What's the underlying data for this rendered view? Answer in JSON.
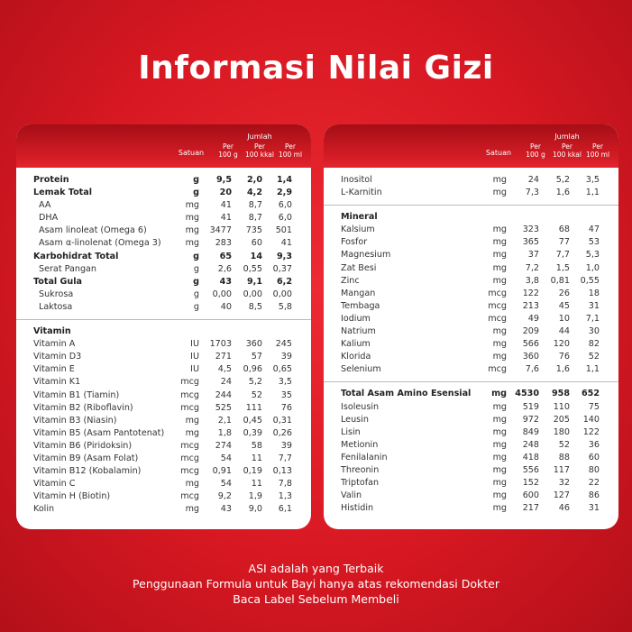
{
  "title": "Informasi Nilai Gizi",
  "panels": [
    {
      "header": {
        "unit": "Satuan",
        "group": "Jumlah",
        "cols": [
          [
            "Per",
            "100 g"
          ],
          [
            "Per",
            "100 kkal"
          ],
          [
            "Per",
            "100 ml"
          ]
        ]
      },
      "sections": [
        {
          "rows": [
            {
              "cells": [
                "Protein",
                "g",
                "9,5",
                "2,0",
                "1,4"
              ],
              "bold": true
            },
            {
              "cells": [
                "Lemak Total",
                "g",
                "20",
                "4,2",
                "2,9"
              ],
              "bold": true
            },
            {
              "cells": [
                "AA",
                "mg",
                "41",
                "8,7",
                "6,0"
              ],
              "indent": true
            },
            {
              "cells": [
                "DHA",
                "mg",
                "41",
                "8,7",
                "6,0"
              ],
              "indent": true
            },
            {
              "cells": [
                "Asam linoleat (Omega 6)",
                "mg",
                "3477",
                "735",
                "501"
              ],
              "indent": true
            },
            {
              "cells": [
                "Asam α-linolenat (Omega 3)",
                "mg",
                "283",
                "60",
                "41"
              ],
              "indent": true
            },
            {
              "cells": [
                "Karbohidrat Total",
                "g",
                "65",
                "14",
                "9,3"
              ],
              "bold": true
            },
            {
              "cells": [
                "Serat Pangan",
                "g",
                "2,6",
                "0,55",
                "0,37"
              ],
              "indent": true
            },
            {
              "cells": [
                "Total Gula",
                "g",
                "43",
                "9,1",
                "6,2"
              ],
              "bold": true
            },
            {
              "cells": [
                "Sukrosa",
                "g",
                "0,00",
                "0,00",
                "0,00"
              ],
              "indent": true
            },
            {
              "cells": [
                "Laktosa",
                "g",
                "40",
                "8,5",
                "5,8"
              ],
              "indent": true
            }
          ]
        },
        {
          "title": "Vitamin",
          "rows": [
            {
              "cells": [
                "Vitamin A",
                "IU",
                "1703",
                "360",
                "245"
              ]
            },
            {
              "cells": [
                "Vitamin D3",
                "IU",
                "271",
                "57",
                "39"
              ]
            },
            {
              "cells": [
                "Vitamin E",
                "IU",
                "4,5",
                "0,96",
                "0,65"
              ]
            },
            {
              "cells": [
                "Vitamin K1",
                "mcg",
                "24",
                "5,2",
                "3,5"
              ]
            },
            {
              "cells": [
                "Vitamin B1 (Tiamin)",
                "mcg",
                "244",
                "52",
                "35"
              ]
            },
            {
              "cells": [
                "Vitamin B2 (Riboflavin)",
                "mcg",
                "525",
                "111",
                "76"
              ]
            },
            {
              "cells": [
                "Vitamin B3 (Niasin)",
                "mg",
                "2,1",
                "0,45",
                "0,31"
              ]
            },
            {
              "cells": [
                "Vitamin B5 (Asam Pantotenat)",
                "mg",
                "1,8",
                "0,39",
                "0,26"
              ]
            },
            {
              "cells": [
                "Vitamin B6 (Piridoksin)",
                "mcg",
                "274",
                "58",
                "39"
              ]
            },
            {
              "cells": [
                "Vitamin B9 (Asam Folat)",
                "mcg",
                "54",
                "11",
                "7,7"
              ]
            },
            {
              "cells": [
                "Vitamin B12 (Kobalamin)",
                "mcg",
                "0,91",
                "0,19",
                "0,13"
              ]
            },
            {
              "cells": [
                "Vitamin C",
                "mg",
                "54",
                "11",
                "7,8"
              ]
            },
            {
              "cells": [
                "Vitamin H (Biotin)",
                "mcg",
                "9,2",
                "1,9",
                "1,3"
              ]
            },
            {
              "cells": [
                "Kolin",
                "mg",
                "43",
                "9,0",
                "6,1"
              ]
            }
          ]
        }
      ]
    },
    {
      "header": {
        "unit": "Satuan",
        "group": "Jumlah",
        "cols": [
          [
            "Per",
            "100 g"
          ],
          [
            "Per",
            "100 kkal"
          ],
          [
            "Per",
            "100 ml"
          ]
        ]
      },
      "sections": [
        {
          "rows": [
            {
              "cells": [
                "Inositol",
                "mg",
                "24",
                "5,2",
                "3,5"
              ]
            },
            {
              "cells": [
                "L-Karnitin",
                "mg",
                "7,3",
                "1,6",
                "1,1"
              ]
            }
          ]
        },
        {
          "title": "Mineral",
          "rows": [
            {
              "cells": [
                "Kalsium",
                "mg",
                "323",
                "68",
                "47"
              ]
            },
            {
              "cells": [
                "Fosfor",
                "mg",
                "365",
                "77",
                "53"
              ]
            },
            {
              "cells": [
                "Magnesium",
                "mg",
                "37",
                "7,7",
                "5,3"
              ]
            },
            {
              "cells": [
                "Zat Besi",
                "mg",
                "7,2",
                "1,5",
                "1,0"
              ]
            },
            {
              "cells": [
                "Zinc",
                "mg",
                "3,8",
                "0,81",
                "0,55"
              ]
            },
            {
              "cells": [
                "Mangan",
                "mcg",
                "122",
                "26",
                "18"
              ]
            },
            {
              "cells": [
                "Tembaga",
                "mcg",
                "213",
                "45",
                "31"
              ]
            },
            {
              "cells": [
                "Iodium",
                "mcg",
                "49",
                "10",
                "7,1"
              ]
            },
            {
              "cells": [
                "Natrium",
                "mg",
                "209",
                "44",
                "30"
              ]
            },
            {
              "cells": [
                "Kalium",
                "mg",
                "566",
                "120",
                "82"
              ]
            },
            {
              "cells": [
                "Klorida",
                "mg",
                "360",
                "76",
                "52"
              ]
            },
            {
              "cells": [
                "Selenium",
                "mcg",
                "7,6",
                "1,6",
                "1,1"
              ]
            }
          ]
        },
        {
          "rows": [
            {
              "cells": [
                "Total Asam Amino Esensial",
                "mg",
                "4530",
                "958",
                "652"
              ],
              "bold": true
            },
            {
              "cells": [
                "Isoleusin",
                "mg",
                "519",
                "110",
                "75"
              ]
            },
            {
              "cells": [
                "Leusin",
                "mg",
                "972",
                "205",
                "140"
              ]
            },
            {
              "cells": [
                "Lisin",
                "mg",
                "849",
                "180",
                "122"
              ]
            },
            {
              "cells": [
                "Metionin",
                "mg",
                "248",
                "52",
                "36"
              ]
            },
            {
              "cells": [
                "Fenilalanin",
                "mg",
                "418",
                "88",
                "60"
              ]
            },
            {
              "cells": [
                "Threonin",
                "mg",
                "556",
                "117",
                "80"
              ]
            },
            {
              "cells": [
                "Triptofan",
                "mg",
                "152",
                "32",
                "22"
              ]
            },
            {
              "cells": [
                "Valin",
                "mg",
                "600",
                "127",
                "86"
              ]
            },
            {
              "cells": [
                "Histidin",
                "mg",
                "217",
                "46",
                "31"
              ]
            }
          ]
        }
      ]
    }
  ],
  "footer": [
    "ASI adalah yang Terbaik",
    "Penggunaan Formula untuk Bayi hanya atas rekomendasi Dokter",
    "Baca Label Sebelum Membeli"
  ]
}
